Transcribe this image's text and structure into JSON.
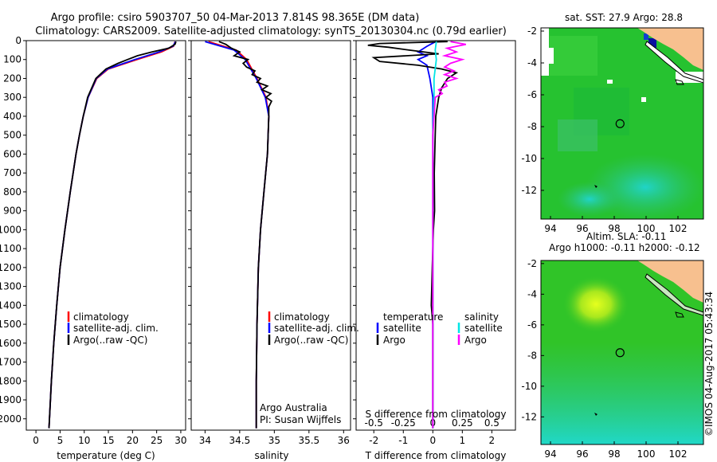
{
  "header": {
    "line1": "Argo profile: csiro 5903707_50 04-Mar-2013 7.814S 98.365E (DM data)",
    "line2": "Climatology: CARS2009. Satellite-adjusted climatology: synTS_20130304.nc (0.79d earlier)"
  },
  "colors": {
    "climatology": "#ff0000",
    "satellite": "#0000ff",
    "argo": "#000000",
    "satellite_salinity": "#00e5e5",
    "argo_salinity": "#ff00ff",
    "land": "#f7c08f",
    "ocean_green": "#22c030"
  },
  "chart_data": [
    {
      "id": "temperature",
      "type": "line",
      "xlabel": "temperature (deg C)",
      "ylabel": "",
      "xlim": [
        -2,
        31
      ],
      "ylim": [
        2060,
        0
      ],
      "xticks": [
        0,
        5,
        10,
        15,
        20,
        25,
        30
      ],
      "yticks": [
        0,
        100,
        200,
        300,
        400,
        500,
        600,
        700,
        800,
        900,
        1000,
        1100,
        1200,
        1300,
        1400,
        1500,
        1600,
        1700,
        1800,
        1900,
        2000
      ],
      "legend": [
        "climatology",
        "satellite-adj. clim.",
        "Argo(..raw -QC)"
      ],
      "series": [
        {
          "name": "climatology",
          "depth": [
            5,
            30,
            60,
            100,
            150,
            200,
            300,
            400,
            500,
            600,
            800,
            1000,
            1200,
            1400,
            1600,
            1800,
            2000,
            2050
          ],
          "values": [
            28.8,
            28.5,
            26,
            21,
            15,
            12.6,
            10.8,
            9.8,
            9.0,
            8.3,
            7.1,
            6.0,
            5.0,
            4.3,
            3.7,
            3.2,
            2.8,
            2.7
          ]
        },
        {
          "name": "satellite-adj. clim.",
          "depth": [
            5,
            30,
            60,
            100,
            150,
            200,
            300,
            400,
            500,
            600,
            800,
            1000,
            1200,
            1400,
            1600,
            1800,
            2000,
            2050
          ],
          "values": [
            28.9,
            28.4,
            25.5,
            20.5,
            14.8,
            12.5,
            10.8,
            9.8,
            9.0,
            8.3,
            7.1,
            6.0,
            5.0,
            4.3,
            3.7,
            3.2,
            2.8,
            2.7
          ]
        },
        {
          "name": "Argo(..raw -QC)",
          "depth": [
            5,
            20,
            40,
            60,
            80,
            100,
            120,
            150,
            200,
            300,
            400,
            500,
            600,
            800,
            1000,
            1200,
            1400,
            1600,
            1800,
            2000,
            2050
          ],
          "values": [
            29.0,
            28.8,
            27.5,
            24,
            21,
            19,
            17,
            14.5,
            12.4,
            10.7,
            9.8,
            9.0,
            8.3,
            7.1,
            6.0,
            5.0,
            4.3,
            3.7,
            3.2,
            2.8,
            2.7
          ]
        }
      ]
    },
    {
      "id": "salinity",
      "type": "line",
      "xlabel": "salinity",
      "xlim": [
        33.8,
        36.1
      ],
      "ylim": [
        2060,
        0
      ],
      "xticks": [
        34,
        34.5,
        35,
        35.5,
        36
      ],
      "legend": [
        "climatology",
        "satellite-adj. clim.",
        "Argo(..raw -QC)"
      ],
      "series": [
        {
          "name": "climatology",
          "depth": [
            5,
            50,
            100,
            200,
            300,
            400,
            600,
            800,
            1000,
            1200,
            1500,
            1800,
            2050
          ],
          "values": [
            34.05,
            34.45,
            34.6,
            34.75,
            34.88,
            34.92,
            34.9,
            34.85,
            34.8,
            34.77,
            34.75,
            34.74,
            34.74
          ]
        },
        {
          "name": "satellite-adj. clim.",
          "depth": [
            5,
            50,
            100,
            200,
            300,
            400,
            600,
            800,
            1000,
            1200,
            1500,
            1800,
            2050
          ],
          "values": [
            34.0,
            34.42,
            34.58,
            34.74,
            34.87,
            34.92,
            34.9,
            34.85,
            34.8,
            34.77,
            34.75,
            34.74,
            34.74
          ]
        },
        {
          "name": "Argo(..raw -QC)",
          "depth": [
            5,
            20,
            40,
            60,
            80,
            100,
            120,
            140,
            160,
            180,
            200,
            220,
            240,
            260,
            280,
            300,
            320,
            350,
            400,
            600,
            800,
            1000,
            1200,
            1500,
            1800,
            2050
          ],
          "values": [
            34.2,
            34.3,
            34.38,
            34.5,
            34.42,
            34.62,
            34.55,
            34.6,
            34.72,
            34.68,
            34.8,
            34.75,
            34.9,
            34.82,
            34.95,
            34.88,
            34.96,
            34.92,
            34.92,
            34.9,
            34.85,
            34.8,
            34.77,
            34.75,
            34.74,
            34.74
          ]
        }
      ],
      "annotations": [
        "Argo Australia",
        "PI: Susan Wijffels"
      ]
    },
    {
      "id": "difference",
      "type": "line",
      "xlabel": "T difference from climatology",
      "top_xlabel": "S difference from climatology",
      "xlim": [
        -2.6,
        2.8
      ],
      "ylim": [
        2060,
        0
      ],
      "xticks": [
        -2,
        -1,
        0,
        1,
        2
      ],
      "top_xticks": [
        "-0.5",
        "-0.25",
        "0",
        "0.25",
        "0.5"
      ],
      "legend_headers": [
        "temperature",
        "salinity"
      ],
      "legend": [
        "satellite",
        "Argo",
        "satellite",
        "Argo"
      ],
      "series": [
        {
          "name": "temperature satellite",
          "depth": [
            5,
            30,
            60,
            80,
            100,
            130,
            200,
            300,
            500,
            800,
            1200,
            1600,
            2050
          ],
          "values": [
            0.1,
            -0.2,
            -0.5,
            -0.2,
            -0.5,
            -0.2,
            -0.1,
            0,
            0,
            0,
            0,
            0,
            0
          ]
        },
        {
          "name": "temperature Argo",
          "depth": [
            5,
            15,
            25,
            35,
            50,
            70,
            90,
            110,
            130,
            150,
            170,
            200,
            250,
            300,
            400,
            500,
            700,
            900,
            1000,
            1200,
            1400,
            1500,
            1700,
            1900,
            2050
          ],
          "values": [
            0.5,
            -1.8,
            -2.2,
            -1.5,
            -0.8,
            0.2,
            -2.0,
            -1.8,
            -0.5,
            0.3,
            0.8,
            0.5,
            0.3,
            0.2,
            0.1,
            0.08,
            0.05,
            0.06,
            0.02,
            -0.02,
            -0.05,
            0.0,
            0.0,
            0.0,
            0.0
          ]
        },
        {
          "name": "salinity satellite",
          "depth": [
            5,
            50,
            100,
            200,
            300,
            500,
            800,
            1200,
            1600,
            2050
          ],
          "values": [
            0.03,
            0.02,
            0.03,
            0.01,
            0.01,
            0.0,
            0.0,
            0.0,
            0.0,
            0.0
          ]
        },
        {
          "name": "salinity Argo",
          "depth": [
            5,
            20,
            40,
            60,
            80,
            100,
            120,
            140,
            160,
            180,
            200,
            220,
            240,
            260,
            280,
            300,
            400,
            500,
            700,
            1000,
            1500,
            2050
          ],
          "values": [
            0.15,
            0.28,
            0.12,
            0.2,
            0.1,
            0.25,
            0.15,
            0.1,
            0.18,
            0.1,
            0.2,
            0.1,
            0.12,
            0.05,
            0.08,
            0.02,
            0.01,
            0.0,
            0.0,
            0.0,
            0.0,
            0.0
          ]
        }
      ]
    },
    {
      "id": "sst_map",
      "type": "heatmap",
      "title": "sat. SST: 27.9 Argo: 28.8",
      "xticks": [
        94,
        96,
        98,
        100,
        102
      ],
      "yticks": [
        -2,
        -4,
        -6,
        -8,
        -10,
        -12
      ],
      "xlim": [
        93.4,
        103.6
      ],
      "ylim": [
        -13.8,
        -1.8
      ],
      "marker": {
        "lon": 98.365,
        "lat": -7.814
      }
    },
    {
      "id": "sla_map",
      "type": "heatmap",
      "title_line1": "Altim. SLA: -0.11",
      "title_line2": "Argo h1000: -0.11 h2000: -0.12",
      "xticks": [
        94,
        96,
        98,
        100,
        102
      ],
      "yticks": [
        -2,
        -4,
        -6,
        -8,
        -10,
        -12
      ],
      "xlim": [
        93.4,
        103.6
      ],
      "ylim": [
        -13.8,
        -1.8
      ],
      "marker": {
        "lon": 98.365,
        "lat": -7.814
      }
    }
  ],
  "footer": {
    "credit": "©IMOS 04-Aug-2017 05:43:34"
  }
}
